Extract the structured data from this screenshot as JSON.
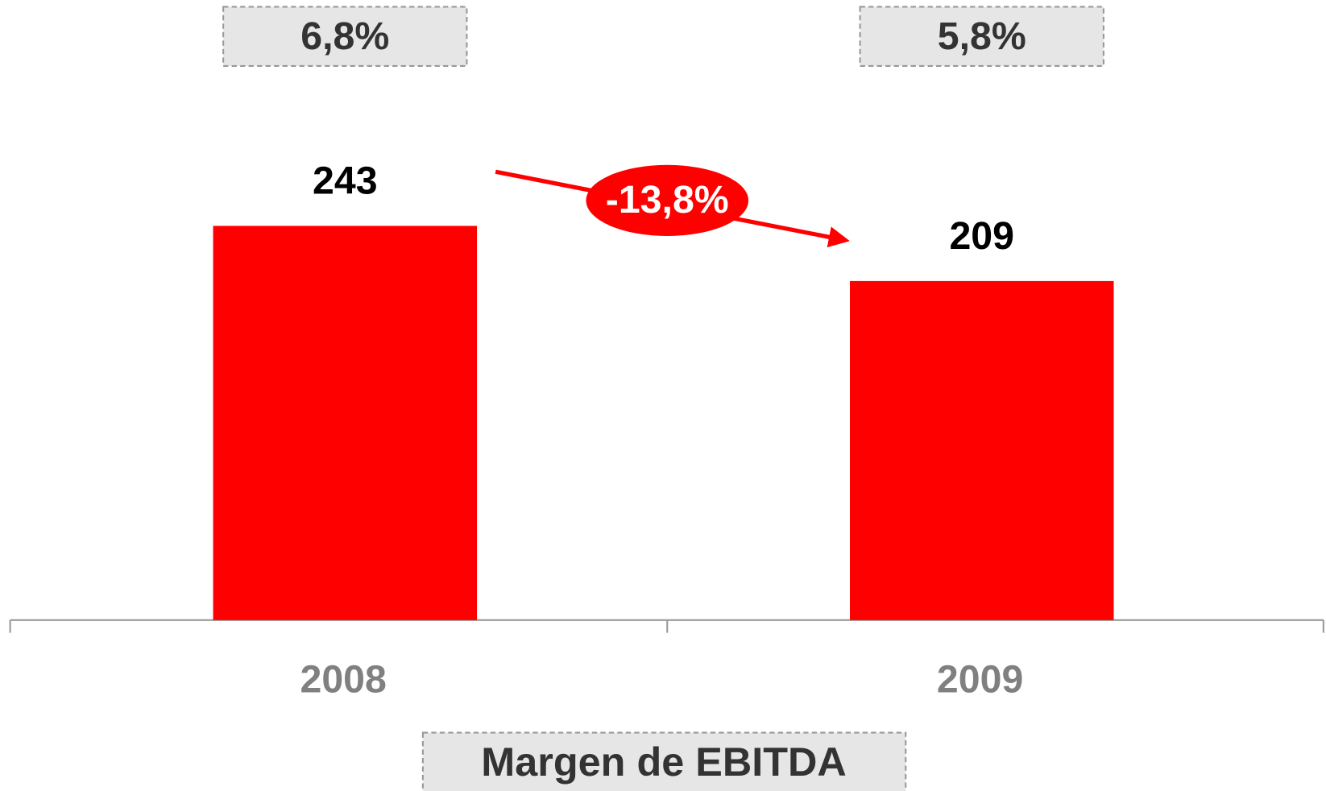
{
  "chart_data": {
    "type": "bar",
    "categories": [
      "2008",
      "2009"
    ],
    "values": [
      243,
      209
    ],
    "color": "#ff0000",
    "margin_labels": [
      "6,8%",
      "5,8%"
    ],
    "change_label": "-13,8%",
    "margin_title": "Margen de EBITDA"
  }
}
